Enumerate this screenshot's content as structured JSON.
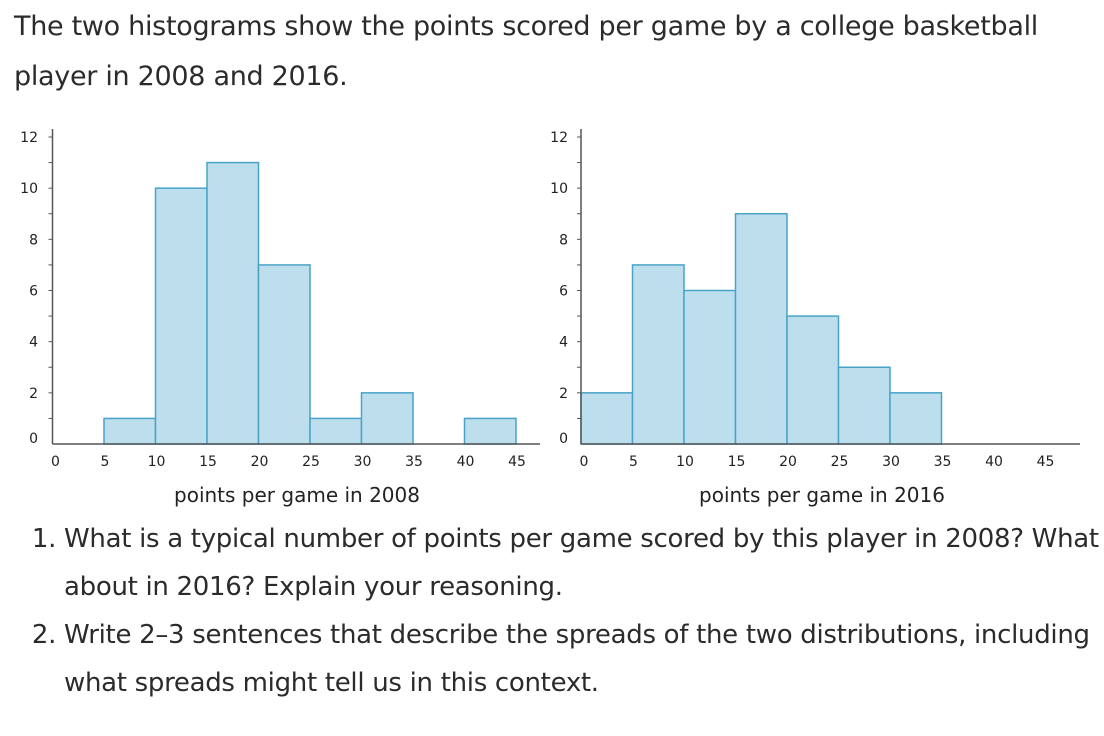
{
  "intro": "The two histograms show the points scored per game by a college basketball player in 2008 and 2016.",
  "questions": [
    "What is a typical number of points per game scored by this player in 2008? What about in 2016? Explain your reasoning.",
    "Write 2–3 sentences that describe the spreads of the two distributions, including what spreads might tell us in this context."
  ],
  "colors": {
    "bar_fill": "#bcdeed",
    "bar_stroke": "#4aa3c6",
    "axis": "#555555"
  },
  "chart_data": [
    {
      "type": "bar",
      "title": "",
      "xlabel": "points per game in 2008",
      "ylabel": "",
      "bin_edges": [
        0,
        5,
        10,
        15,
        20,
        25,
        30,
        35,
        40,
        45
      ],
      "values": [
        0,
        1,
        10,
        11,
        7,
        1,
        2,
        0,
        1
      ],
      "xticks": [
        "0",
        "5",
        "10",
        "15",
        "20",
        "25",
        "30",
        "35",
        "40",
        "45"
      ],
      "yticks": [
        "0",
        "2",
        "4",
        "6",
        "8",
        "10",
        "12"
      ],
      "xlim": [
        0,
        47
      ],
      "ylim": [
        0,
        12
      ],
      "grid": false
    },
    {
      "type": "bar",
      "title": "",
      "xlabel": "points per game in 2016",
      "ylabel": "",
      "bin_edges": [
        0,
        5,
        10,
        15,
        20,
        25,
        30,
        35,
        40,
        45
      ],
      "values": [
        2,
        7,
        6,
        9,
        5,
        3,
        2,
        0,
        0
      ],
      "xticks": [
        "0",
        "5",
        "10",
        "15",
        "20",
        "25",
        "30",
        "35",
        "40",
        "45"
      ],
      "yticks": [
        "0",
        "2",
        "4",
        "6",
        "8",
        "10",
        "12"
      ],
      "xlim": [
        0,
        48.5
      ],
      "ylim": [
        0,
        12
      ],
      "grid": false
    }
  ]
}
